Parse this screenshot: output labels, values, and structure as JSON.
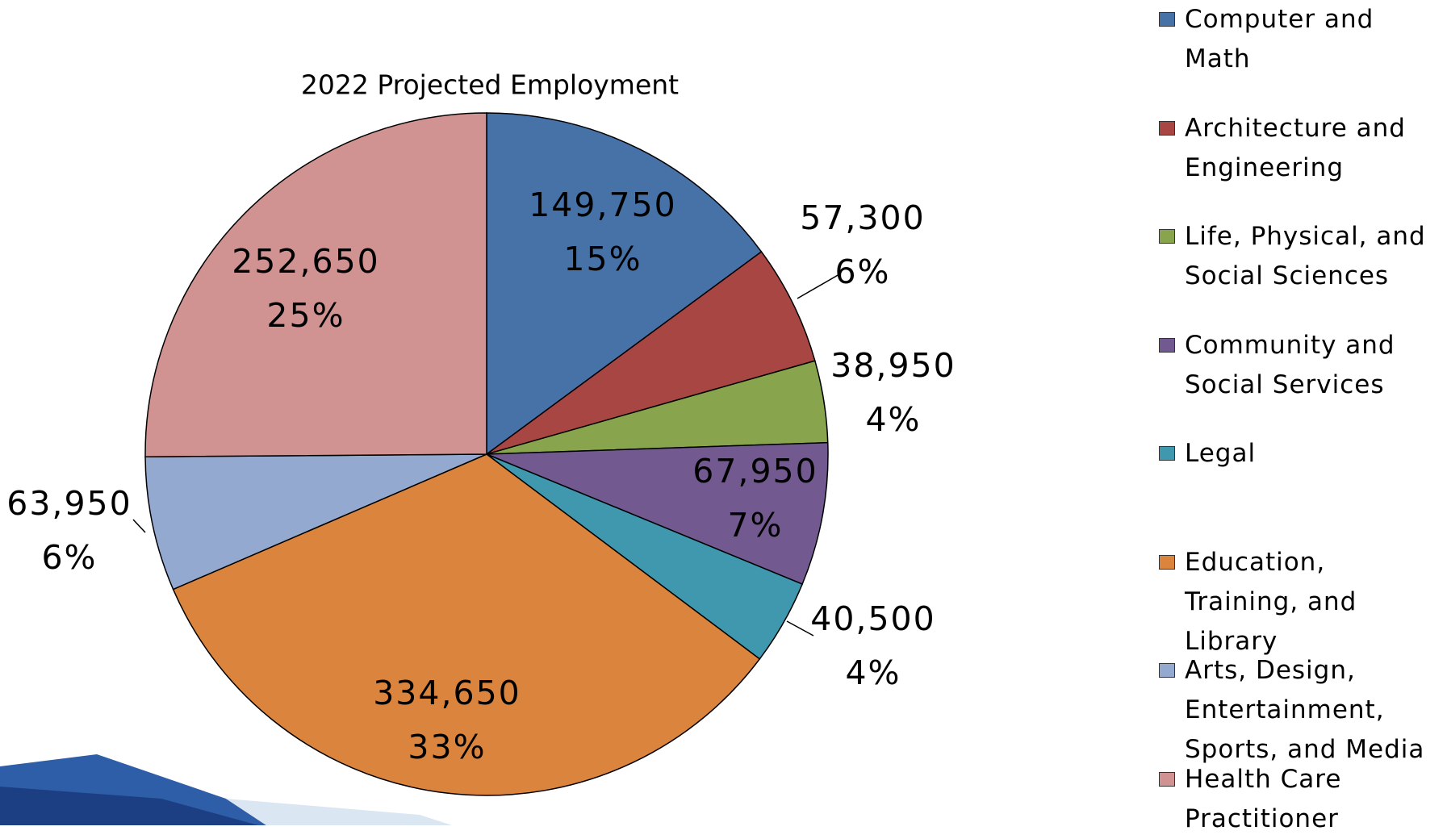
{
  "chart_data": {
    "type": "pie",
    "title": "2022 Projected Employment",
    "categories": [
      "Computer and Math",
      "Architecture and Engineering",
      "Life, Physical, and Social Sciences",
      "Community and Social Services",
      "Legal",
      "Education, Training, and Library",
      "Arts, Design, Entertainment, Sports, and Media",
      "Health Care Practitioner"
    ],
    "values": [
      149750,
      57300,
      38950,
      67950,
      40500,
      334650,
      63950,
      252650
    ],
    "value_labels": [
      "149,750",
      "57,300",
      "38,950",
      "67,950",
      "40,500",
      "334,650",
      "63,950",
      "252,650"
    ],
    "percents": [
      15,
      6,
      4,
      7,
      4,
      33,
      6,
      25
    ],
    "percent_labels": [
      "15%",
      "6%",
      "4%",
      "7%",
      "4%",
      "33%",
      "6%",
      "25%"
    ],
    "colors": [
      "#4672a8",
      "#a84644",
      "#88a44c",
      "#72598f",
      "#3f98ae",
      "#db843d",
      "#93a9cf",
      "#d19392"
    ]
  }
}
